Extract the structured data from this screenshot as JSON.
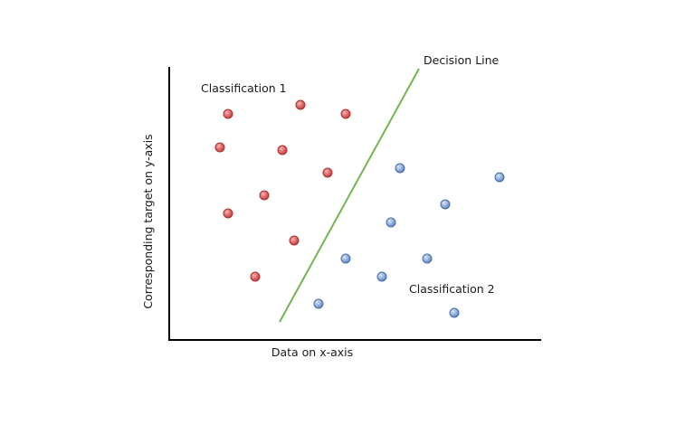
{
  "chart_data": {
    "type": "scatter",
    "title": "",
    "xlabel": "Data on x-axis",
    "ylabel": "Corresponding target on y-axis",
    "xlim": [
      0,
      410
    ],
    "ylim": [
      0,
      305
    ],
    "x_ticks_shown": false,
    "y_ticks_shown": false,
    "grid": false,
    "series": [
      {
        "group": "classification-1",
        "color": "#e06666",
        "points": [
          {
            "x": 65,
            "y": 250
          },
          {
            "x": 145,
            "y": 260
          },
          {
            "x": 195,
            "y": 250
          },
          {
            "x": 56,
            "y": 213
          },
          {
            "x": 125,
            "y": 210
          },
          {
            "x": 175,
            "y": 185
          },
          {
            "x": 105,
            "y": 160
          },
          {
            "x": 65,
            "y": 140
          },
          {
            "x": 138,
            "y": 110
          },
          {
            "x": 95,
            "y": 70
          }
        ]
      },
      {
        "group": "classification-2",
        "color": "#8eaee0",
        "points": [
          {
            "x": 255,
            "y": 190
          },
          {
            "x": 365,
            "y": 180
          },
          {
            "x": 305,
            "y": 150
          },
          {
            "x": 245,
            "y": 130
          },
          {
            "x": 195,
            "y": 90
          },
          {
            "x": 285,
            "y": 90
          },
          {
            "x": 235,
            "y": 70
          },
          {
            "x": 165,
            "y": 40
          },
          {
            "x": 315,
            "y": 30
          }
        ]
      }
    ],
    "decision_line": {
      "x1": 122,
      "y1": 20,
      "x2": 276,
      "y2": 300,
      "color": "#77b255"
    },
    "annotations": [
      {
        "text": "Classification 1",
        "x": 35,
        "y": 278
      },
      {
        "text": "Decision Line",
        "x": 281,
        "y": 309
      },
      {
        "text": "Classification 2",
        "x": 265,
        "y": 56
      }
    ]
  }
}
